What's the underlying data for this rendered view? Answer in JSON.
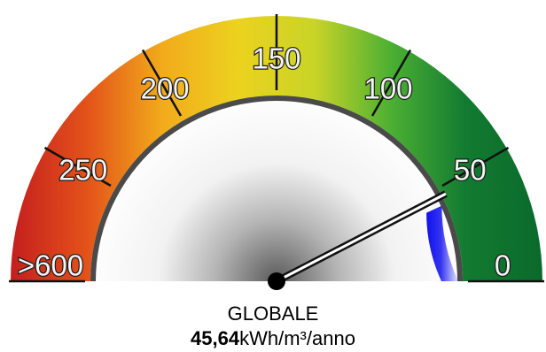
{
  "chart_data": {
    "type": "gauge",
    "title": "GLOBALE",
    "value": 45.64,
    "value_text": "45,64",
    "unit": "kWh/m³/anno",
    "scale": {
      "left_end": 300,
      "right_end": 0
    },
    "ticks": [
      {
        "value": 300,
        "label": ">600"
      },
      {
        "value": 250,
        "label": "250"
      },
      {
        "value": 200,
        "label": "200"
      },
      {
        "value": 150,
        "label": "150"
      },
      {
        "value": 100,
        "label": "100"
      },
      {
        "value": 50,
        "label": "50"
      },
      {
        "value": 0,
        "label": "0"
      }
    ],
    "color_bands": [
      "#c41e1e",
      "#e3521a",
      "#f2ab1b",
      "#ecd21f",
      "#c9d427",
      "#4cb033",
      "#127a31",
      "#0b6a2b"
    ],
    "blue_band": {
      "from": 0,
      "to": 41,
      "color": "#1010ee"
    }
  }
}
